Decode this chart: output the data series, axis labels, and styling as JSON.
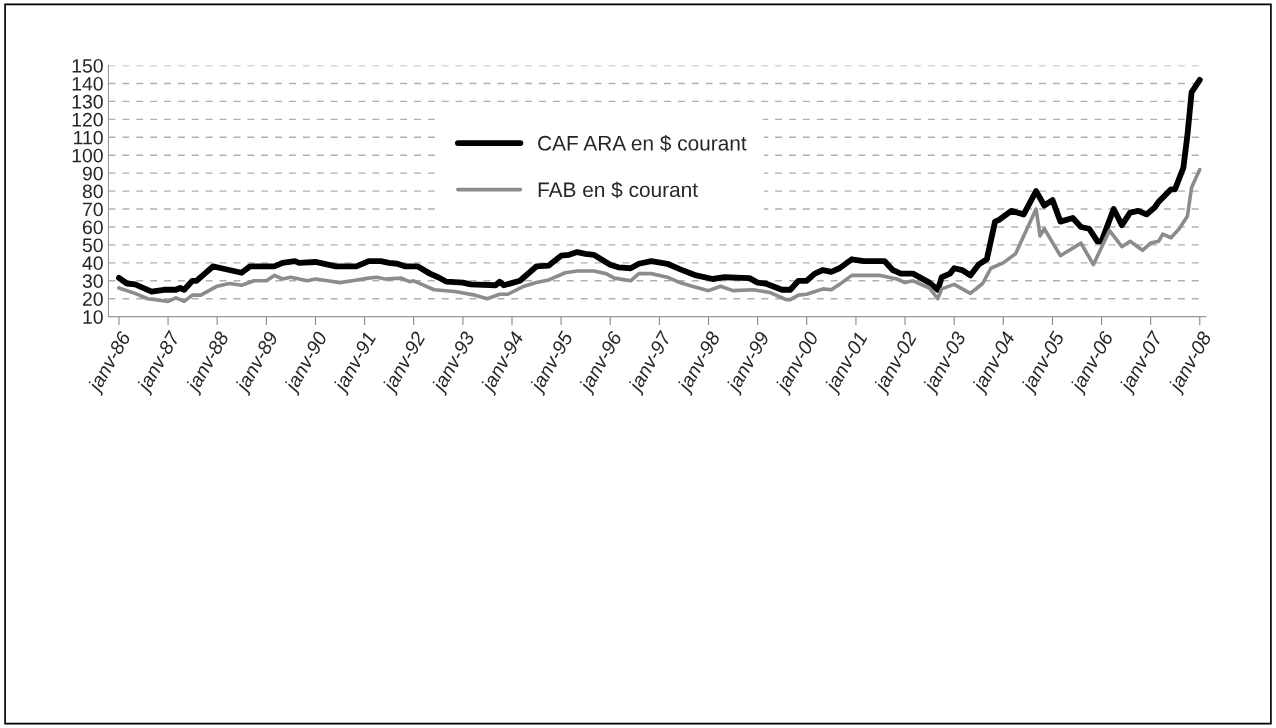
{
  "chart_data": {
    "type": "line",
    "xlim": [
      "1985-10-15",
      "2008-02-15"
    ],
    "xticks": [
      {
        "value": "1986-01",
        "label": "janv-86"
      },
      {
        "value": "1987-01",
        "label": "janv-87"
      },
      {
        "value": "1988-01",
        "label": "janv-88"
      },
      {
        "value": "1989-01",
        "label": "janv-89"
      },
      {
        "value": "1990-01",
        "label": "janv-90"
      },
      {
        "value": "1991-01",
        "label": "janv-91"
      },
      {
        "value": "1992-01",
        "label": "janv-92"
      },
      {
        "value": "1993-01",
        "label": "janv-93"
      },
      {
        "value": "1994-01",
        "label": "janv-94"
      },
      {
        "value": "1995-01",
        "label": "janv-95"
      },
      {
        "value": "1996-01",
        "label": "janv-96"
      },
      {
        "value": "1997-01",
        "label": "janv-97"
      },
      {
        "value": "1998-01",
        "label": "janv-98"
      },
      {
        "value": "1999-01",
        "label": "janv-99"
      },
      {
        "value": "2000-01",
        "label": "janv-00"
      },
      {
        "value": "2001-01",
        "label": "janv-01"
      },
      {
        "value": "2002-01",
        "label": "janv-02"
      },
      {
        "value": "2003-01",
        "label": "janv-03"
      },
      {
        "value": "2004-01",
        "label": "janv-04"
      },
      {
        "value": "2005-01",
        "label": "janv-05"
      },
      {
        "value": "2006-01",
        "label": "janv-06"
      },
      {
        "value": "2007-01",
        "label": "janv-07"
      },
      {
        "value": "2008-01",
        "label": "janv-08"
      }
    ],
    "ylim": [
      10,
      150
    ],
    "yticks": [
      10,
      20,
      30,
      40,
      50,
      60,
      70,
      80,
      90,
      100,
      110,
      120,
      130,
      140,
      150
    ],
    "grid": "y",
    "legend": "top",
    "line_style": "solid",
    "series": [
      {
        "name": "CAF ARA en $ courant",
        "color": "#000000",
        "x": [
          "1986-01",
          "1986-03",
          "1986-05",
          "1986-09",
          "1986-12",
          "1987-03",
          "1987-04",
          "1987-05",
          "1987-07",
          "1987-08",
          "1987-10",
          "1987-12",
          "1988-02",
          "1988-07",
          "1988-09",
          "1989-03",
          "1989-05",
          "1989-08",
          "1989-09",
          "1990-01",
          "1990-06",
          "1990-11",
          "1991-02",
          "1991-05",
          "1991-07",
          "1991-09",
          "1991-11",
          "1992-02",
          "1992-05",
          "1992-07",
          "1992-09",
          "1993-01",
          "1993-03",
          "1993-09",
          "1993-10",
          "1993-11",
          "1994-03",
          "1994-07",
          "1994-10",
          "1995-01",
          "1995-03",
          "1995-05",
          "1995-07",
          "1995-09",
          "1996-01",
          "1996-03",
          "1996-06",
          "1996-08",
          "1996-11",
          "1997-03",
          "1997-06",
          "1997-10",
          "1998-02",
          "1998-05",
          "1998-11",
          "1999-01",
          "1999-03",
          "1999-07",
          "1999-09",
          "1999-11",
          "2000-01",
          "2000-03",
          "2000-05",
          "2000-07",
          "2000-09",
          "2000-12",
          "2001-03",
          "2001-08",
          "2001-10",
          "2001-12",
          "2002-03",
          "2002-07",
          "2002-09",
          "2002-10",
          "2002-12",
          "2003-01",
          "2003-03",
          "2003-05",
          "2003-07",
          "2003-09",
          "2003-11",
          "2003-12",
          "2004-03",
          "2004-06",
          "2004-09",
          "2004-11",
          "2005-01",
          "2005-03",
          "2005-06",
          "2005-08",
          "2005-10",
          "2005-12",
          "2006-01",
          "2006-04",
          "2006-06",
          "2006-08",
          "2006-10",
          "2006-12",
          "2007-02",
          "2007-03",
          "2007-06",
          "2007-07",
          "2007-09",
          "2007-10",
          "2007-11",
          "2008-01"
        ],
        "values": [
          31.6,
          28.5,
          28,
          24,
          25,
          25,
          26,
          25,
          30,
          30,
          34,
          38,
          37,
          34.5,
          38,
          38,
          40,
          41,
          40,
          40.5,
          38,
          38,
          41,
          41,
          40,
          39.5,
          38,
          38,
          34,
          32,
          29.5,
          29,
          28,
          27.5,
          29.5,
          27.5,
          30,
          38,
          38.5,
          44,
          44.5,
          46,
          45,
          44.5,
          39,
          37.5,
          37,
          39.5,
          41,
          39.5,
          36.5,
          33,
          31,
          32,
          31.5,
          29,
          28.5,
          25,
          25,
          30,
          30,
          34,
          36,
          35,
          37,
          42,
          41,
          41,
          36,
          34,
          34,
          29,
          25,
          32,
          34,
          37,
          36,
          33,
          39,
          42,
          63,
          64,
          69,
          67,
          80,
          72,
          75,
          63,
          65,
          60,
          59,
          52,
          52,
          70,
          61,
          68,
          69,
          67,
          71,
          74,
          81,
          81,
          93,
          111,
          135,
          142
        ]
      },
      {
        "name": "FAB en $ courant",
        "color": "#8c8c8c",
        "x": [
          "1986-01",
          "1986-05",
          "1986-08",
          "1986-10",
          "1987-01",
          "1987-03",
          "1987-05",
          "1987-07",
          "1987-09",
          "1988-01",
          "1988-04",
          "1988-07",
          "1988-10",
          "1989-01",
          "1989-03",
          "1989-05",
          "1989-07",
          "1989-11",
          "1990-01",
          "1990-04",
          "1990-07",
          "1990-10",
          "1991-02",
          "1991-04",
          "1991-06",
          "1991-10",
          "1991-12",
          "1992-01",
          "1992-03",
          "1992-06",
          "1992-11",
          "1993-04",
          "1993-07",
          "1993-10",
          "1993-12",
          "1994-04",
          "1994-07",
          "1994-10",
          "1995-02",
          "1995-05",
          "1995-09",
          "1995-12",
          "1996-02",
          "1996-06",
          "1996-08",
          "1996-11",
          "1997-03",
          "1997-06",
          "1997-09",
          "1998-01",
          "1998-04",
          "1998-07",
          "1998-12",
          "1999-04",
          "1999-08",
          "1999-09",
          "1999-11",
          "2000-01",
          "2000-05",
          "2000-07",
          "2000-09",
          "2000-12",
          "2001-07",
          "2001-11",
          "2002-01",
          "2002-03",
          "2002-07",
          "2002-09",
          "2002-10",
          "2003-01",
          "2003-05",
          "2003-08",
          "2003-10",
          "2004-01",
          "2004-04",
          "2004-09",
          "2004-10",
          "2004-11",
          "2005-03",
          "2005-08",
          "2005-11",
          "2006-03",
          "2006-06",
          "2006-08",
          "2006-11",
          "2007-01",
          "2007-03",
          "2007-04",
          "2007-06",
          "2007-08",
          "2007-10",
          "2007-11",
          "2008-01"
        ],
        "values": [
          26,
          23,
          20,
          19.5,
          18.5,
          20.5,
          18.5,
          22,
          22,
          27,
          28.5,
          27.5,
          30,
          30,
          33,
          31,
          32,
          30,
          31,
          30,
          29,
          30,
          31.5,
          32,
          31,
          31.5,
          29.5,
          30,
          28,
          25,
          24,
          22,
          20,
          22.5,
          22.5,
          27,
          29,
          30.5,
          34.5,
          35.5,
          35.5,
          34,
          31.5,
          30,
          34,
          34,
          32,
          29,
          27,
          24.5,
          27,
          24.5,
          25,
          23.5,
          19.5,
          19.5,
          22,
          22.5,
          25.5,
          25,
          28,
          33,
          33,
          31,
          29,
          30,
          26,
          20,
          25.5,
          28,
          23,
          28.5,
          37,
          40,
          45,
          70,
          55,
          59,
          44,
          51,
          39,
          58,
          49,
          52,
          47,
          51,
          52,
          56,
          54,
          59,
          66,
          82,
          92
        ]
      }
    ]
  }
}
